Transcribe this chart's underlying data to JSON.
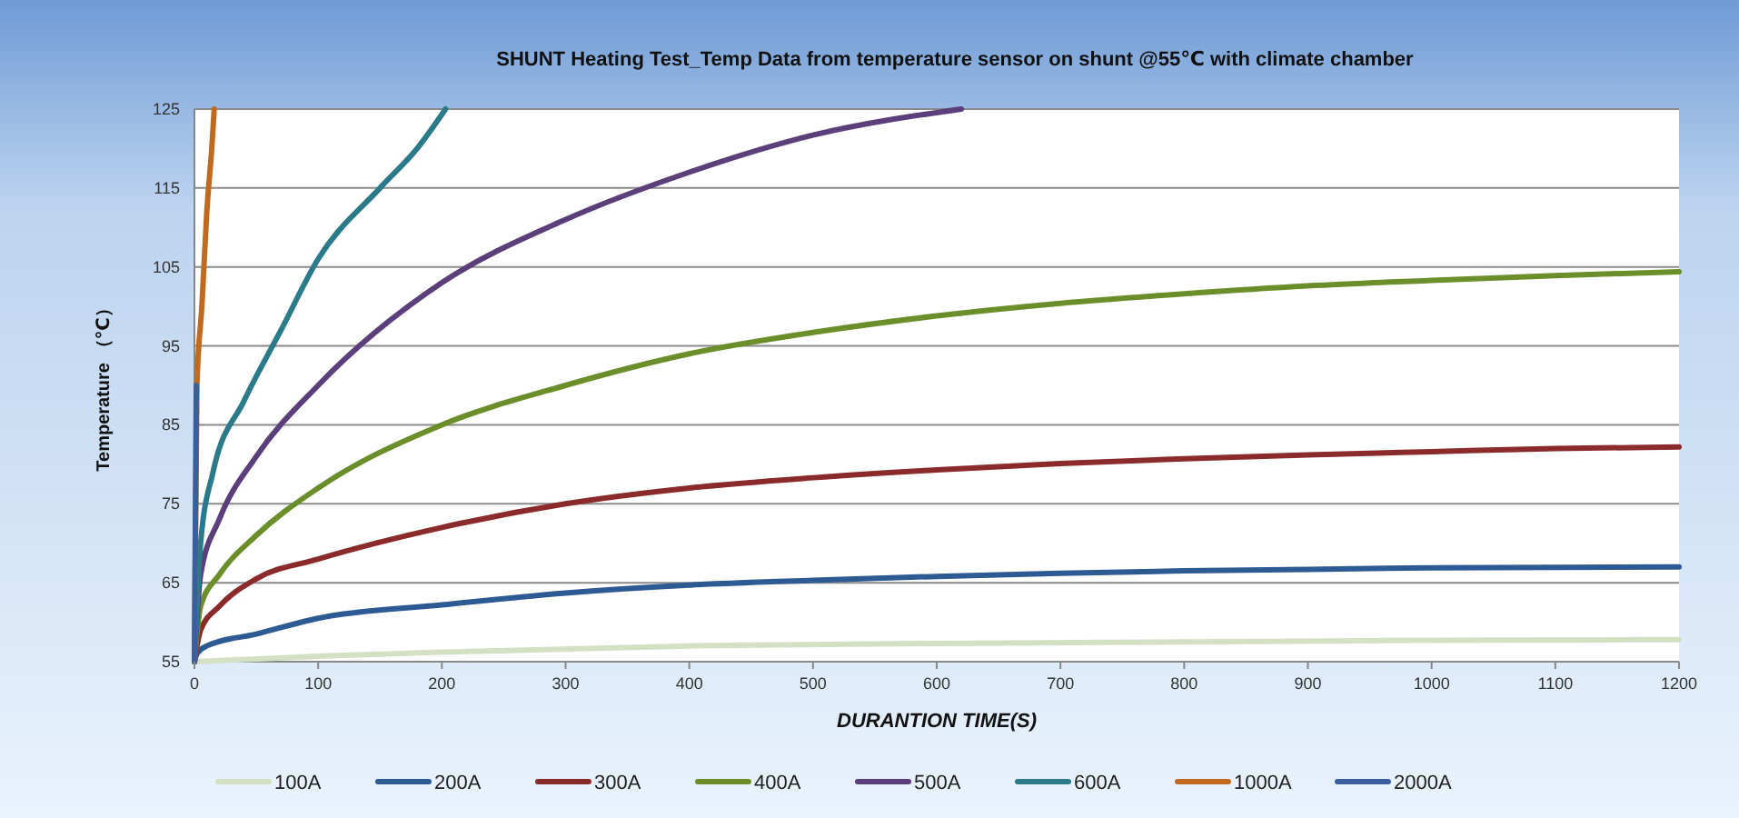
{
  "chart_data": {
    "type": "line",
    "title": "SHUNT Heating Test_Temp Data from temperature sensor on shunt @55℃ with climate chamber",
    "xlabel": "DURANTION TIME(S)",
    "ylabel": "Temperature （℃）",
    "xlim": [
      0,
      1200
    ],
    "xticks": [
      0,
      100,
      200,
      300,
      400,
      500,
      600,
      700,
      800,
      900,
      1000,
      1100,
      1200
    ],
    "ylim": [
      55,
      125
    ],
    "yticks": [
      55,
      65,
      75,
      85,
      95,
      105,
      115,
      125
    ],
    "grid": "y",
    "legend": "bottom",
    "marker": "none",
    "line_style": "solid",
    "series": [
      {
        "name": "100A",
        "color": "#d4e0c4",
        "x": [
          0,
          100,
          200,
          400,
          600,
          800,
          1000,
          1200
        ],
        "values": [
          55,
          55.7,
          56.2,
          57,
          57.3,
          57.5,
          57.7,
          57.8
        ]
      },
      {
        "name": "200A",
        "color": "#2e5a94",
        "x": [
          0,
          2,
          10,
          50,
          100,
          200,
          300,
          400,
          500,
          600,
          700,
          800,
          900,
          1000,
          1200
        ],
        "values": [
          55,
          56,
          57,
          58.5,
          60.5,
          62.2,
          63.7,
          64.7,
          65.3,
          65.8,
          66.2,
          66.5,
          66.7,
          66.9,
          67
        ]
      },
      {
        "name": "300A",
        "color": "#8b2a2a",
        "x": [
          0,
          5,
          20,
          50,
          100,
          200,
          300,
          400,
          500,
          600,
          700,
          800,
          900,
          1000,
          1100,
          1200
        ],
        "values": [
          55,
          59,
          62,
          65.5,
          68,
          72,
          75,
          77,
          78.3,
          79.3,
          80.1,
          80.7,
          81.2,
          81.6,
          82,
          82.2
        ]
      },
      {
        "name": "400A",
        "color": "#6b8e2a",
        "x": [
          0,
          5,
          20,
          50,
          100,
          200,
          300,
          400,
          500,
          600,
          700,
          800,
          900,
          1000,
          1100,
          1200
        ],
        "values": [
          55,
          62,
          66,
          71,
          77,
          85,
          90,
          94,
          96.7,
          98.8,
          100.4,
          101.6,
          102.6,
          103.3,
          103.9,
          104.4
        ]
      },
      {
        "name": "500A",
        "color": "#5b3f7a",
        "x": [
          0,
          5,
          20,
          50,
          100,
          200,
          300,
          400,
          500,
          620
        ],
        "values": [
          55,
          66,
          73,
          81,
          90,
          103,
          111,
          117,
          121.7,
          125
        ]
      },
      {
        "name": "600A",
        "color": "#2a7a8a",
        "x": [
          0,
          5,
          15,
          40,
          70,
          100,
          150,
          180,
          203
        ],
        "values": [
          55,
          70,
          79,
          88,
          97,
          106,
          115,
          120,
          125
        ]
      },
      {
        "name": "1000A",
        "color": "#c06a20",
        "x": [
          0,
          2,
          6,
          10,
          14,
          16
        ],
        "values": [
          55,
          90,
          100,
          112,
          120,
          125
        ]
      },
      {
        "name": "2000A",
        "color": "#3a5f9e",
        "x": [
          0,
          1.5
        ],
        "values": [
          55,
          90
        ]
      }
    ]
  }
}
